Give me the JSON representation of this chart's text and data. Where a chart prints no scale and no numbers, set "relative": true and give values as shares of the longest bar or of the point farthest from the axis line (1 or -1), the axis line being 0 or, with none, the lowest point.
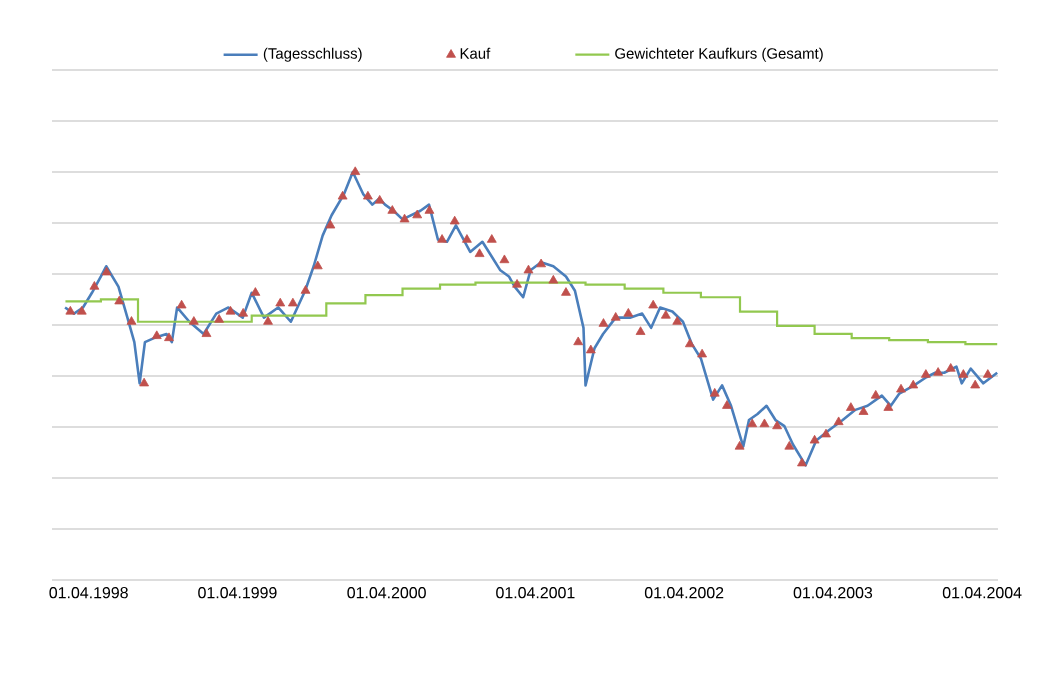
{
  "chart_data": {
    "type": "line",
    "relative": true,
    "grid": "y",
    "legend": "top",
    "xlim": [
      "1998-01-01",
      "2004-05-10"
    ],
    "xticks": [
      {
        "value": "1998-04-01",
        "label": "01.04.1998"
      },
      {
        "value": "1999-04-01",
        "label": "01.04.1999"
      },
      {
        "value": "2000-04-01",
        "label": "01.04.2000"
      },
      {
        "value": "2001-04-01",
        "label": "01.04.2001"
      },
      {
        "value": "2002-04-01",
        "label": "01.04.2002"
      },
      {
        "value": "2003-04-01",
        "label": "01.04.2003"
      },
      {
        "value": "2004-04-01",
        "label": "01.04.2004"
      }
    ],
    "series": [
      {
        "name": "(Tagesschluss)",
        "color": "#4a7ebb",
        "marker": "none",
        "x": [
          "1998-02-02",
          "1998-02-24",
          "1998-03-18",
          "1998-04-09",
          "1998-05-01",
          "1998-05-14",
          "1998-06-13",
          "1998-07-05",
          "1998-07-22",
          "1998-08-04",
          "1998-08-17",
          "1998-09-08",
          "1998-10-09",
          "1998-10-22",
          "1998-11-04",
          "1998-12-04",
          "1999-01-08",
          "1999-02-08",
          "1999-03-10",
          "1999-04-14",
          "1999-05-06",
          "1999-06-05",
          "1999-07-10",
          "1999-08-10",
          "1999-09-14",
          "1999-10-05",
          "1999-10-27",
          "1999-11-18",
          "1999-12-18",
          "2000-01-09",
          "2000-02-04",
          "2000-02-26",
          "2000-03-14",
          "2000-03-28",
          "2000-04-18",
          "2000-05-10",
          "2000-06-23",
          "2000-07-14",
          "2000-08-05",
          "2000-08-27",
          "2000-09-18",
          "2000-10-23",
          "2000-11-22",
          "2000-12-14",
          "2001-01-05",
          "2001-01-26",
          "2001-02-09",
          "2001-03-02",
          "2001-03-20",
          "2001-04-15",
          "2001-05-15",
          "2001-06-15",
          "2001-07-07",
          "2001-07-28",
          "2001-08-02",
          "2001-08-24",
          "2001-09-14",
          "2001-10-15",
          "2001-11-19",
          "2001-12-19",
          "2002-01-10",
          "2002-02-01",
          "2002-03-03",
          "2002-03-29",
          "2002-04-20",
          "2002-05-12",
          "2002-06-11",
          "2002-07-03",
          "2002-07-25",
          "2002-08-24",
          "2002-09-07",
          "2002-09-28",
          "2002-10-20",
          "2002-11-11",
          "2002-12-03",
          "2002-12-24",
          "2003-01-24",
          "2003-02-19",
          "2003-03-22",
          "2003-04-25",
          "2003-05-26",
          "2003-06-25",
          "2003-07-30",
          "2003-08-21",
          "2003-09-11",
          "2003-10-17",
          "2003-11-16",
          "2003-12-08",
          "2003-12-30",
          "2004-01-29",
          "2004-02-11",
          "2004-03-04",
          "2004-04-04",
          "2004-05-08"
        ],
        "values": [
          0.668,
          0.653,
          0.668,
          0.704,
          0.744,
          0.769,
          0.719,
          0.643,
          0.583,
          0.482,
          0.583,
          0.593,
          0.603,
          0.583,
          0.668,
          0.633,
          0.603,
          0.653,
          0.668,
          0.643,
          0.704,
          0.643,
          0.668,
          0.633,
          0.709,
          0.769,
          0.844,
          0.894,
          0.945,
          1,
          0.945,
          0.92,
          0.935,
          0.92,
          0.905,
          0.884,
          0.905,
          0.92,
          0.834,
          0.829,
          0.869,
          0.804,
          0.829,
          0.794,
          0.759,
          0.744,
          0.719,
          0.693,
          0.759,
          0.779,
          0.769,
          0.744,
          0.709,
          0.618,
          0.477,
          0.568,
          0.603,
          0.643,
          0.643,
          0.653,
          0.618,
          0.668,
          0.658,
          0.633,
          0.578,
          0.543,
          0.442,
          0.477,
          0.427,
          0.327,
          0.392,
          0.407,
          0.427,
          0.392,
          0.377,
          0.332,
          0.281,
          0.342,
          0.367,
          0.392,
          0.417,
          0.427,
          0.452,
          0.427,
          0.457,
          0.477,
          0.497,
          0.508,
          0.508,
          0.523,
          0.482,
          0.518,
          0.482,
          0.508
        ]
      },
      {
        "name": "Kauf",
        "type": "scatter",
        "color": "#c0504d",
        "marker": "triangle",
        "x": [
          "1998-02-15",
          "1998-03-15",
          "1998-04-15",
          "1998-05-15",
          "1998-06-15",
          "1998-07-15",
          "1998-08-15",
          "1998-09-15",
          "1998-10-15",
          "1998-11-15",
          "1998-12-15",
          "1999-01-15",
          "1999-02-15",
          "1999-03-15",
          "1999-04-15",
          "1999-05-15",
          "1999-06-15",
          "1999-07-15",
          "1999-08-15",
          "1999-09-15",
          "1999-10-15",
          "1999-11-15",
          "1999-12-15",
          "2000-01-15",
          "2000-02-15",
          "2000-03-15",
          "2000-04-15",
          "2000-05-15",
          "2000-06-15",
          "2000-07-15",
          "2000-08-15",
          "2000-09-15",
          "2000-10-15",
          "2000-11-15",
          "2000-12-15",
          "2001-01-15",
          "2001-02-15",
          "2001-03-15",
          "2001-04-15",
          "2001-05-15",
          "2001-06-15",
          "2001-07-15",
          "2001-08-15",
          "2001-09-15",
          "2001-10-15",
          "2001-11-15",
          "2001-12-15",
          "2002-01-15",
          "2002-02-15",
          "2002-03-15",
          "2002-04-15",
          "2002-05-15",
          "2002-06-15",
          "2002-07-15",
          "2002-08-15",
          "2002-09-15",
          "2002-10-15",
          "2002-11-15",
          "2002-12-15",
          "2003-01-15",
          "2003-02-15",
          "2003-03-15",
          "2003-04-15",
          "2003-05-15",
          "2003-06-15",
          "2003-07-15",
          "2003-08-15",
          "2003-09-15",
          "2003-10-15",
          "2003-11-15",
          "2003-12-15",
          "2004-01-15",
          "2004-02-15",
          "2004-03-15",
          "2004-04-15"
        ],
        "values": [
          0.658,
          0.658,
          0.719,
          0.754,
          0.683,
          0.633,
          0.482,
          0.598,
          0.593,
          0.673,
          0.633,
          0.603,
          0.638,
          0.658,
          0.653,
          0.704,
          0.633,
          0.678,
          0.678,
          0.709,
          0.769,
          0.869,
          0.94,
          1,
          0.94,
          0.93,
          0.905,
          0.884,
          0.894,
          0.905,
          0.834,
          0.879,
          0.834,
          0.799,
          0.834,
          0.784,
          0.724,
          0.759,
          0.774,
          0.734,
          0.704,
          0.583,
          0.563,
          0.628,
          0.643,
          0.653,
          0.608,
          0.673,
          0.648,
          0.633,
          0.578,
          0.553,
          0.457,
          0.427,
          0.327,
          0.382,
          0.382,
          0.377,
          0.327,
          0.286,
          0.342,
          0.357,
          0.387,
          0.422,
          0.412,
          0.452,
          0.422,
          0.467,
          0.477,
          0.503,
          0.508,
          0.518,
          0.503,
          0.477,
          0.503
        ]
      },
      {
        "name": "Gewichteter Kaufkurs (Gesamt)",
        "type": "step",
        "color": "#92c84f",
        "marker": "none",
        "x": [
          "1998-02-03",
          "1998-05-01",
          "1998-07-31",
          "1999-05-06",
          "1999-11-05",
          "2000-02-09",
          "2000-05-10",
          "2000-08-10",
          "2000-11-05",
          "2001-08-02",
          "2001-11-06",
          "2002-02-09",
          "2002-05-12",
          "2002-08-16",
          "2002-11-15",
          "2003-02-15",
          "2003-05-17",
          "2003-08-17",
          "2003-11-20",
          "2004-02-20",
          "2004-05-08"
        ],
        "values": [
          0.683,
          0.688,
          0.633,
          0.648,
          0.678,
          0.698,
          0.714,
          0.724,
          0.729,
          0.724,
          0.714,
          0.704,
          0.693,
          0.658,
          0.623,
          0.603,
          0.593,
          0.588,
          0.583,
          0.578,
          0.578
        ]
      }
    ]
  }
}
